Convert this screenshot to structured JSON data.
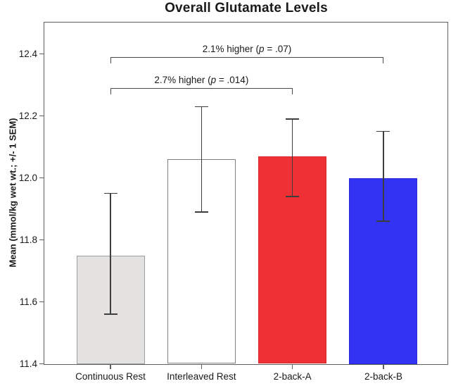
{
  "title": "Overall Glutamate Levels",
  "y_axis": {
    "label": "Mean (mmol/kg wet wt.; +/- 1 SEM)"
  },
  "chart_data": {
    "type": "bar",
    "title": "Overall Glutamate Levels",
    "xlabel": "",
    "ylabel": "Mean (mmol/kg wet wt.; +/- 1 SEM)",
    "categories": [
      "Continuous Rest",
      "Interleaved Rest",
      "2-back-A",
      "2-back-B"
    ],
    "values": [
      11.75,
      12.06,
      12.07,
      12.0
    ],
    "error_low": [
      11.56,
      11.89,
      11.94,
      11.86
    ],
    "error_high": [
      11.95,
      12.23,
      12.19,
      12.15
    ],
    "error_type": "+/- 1 SEM",
    "bar_colors": [
      "#e3e2e0",
      "#ffffff",
      "#ee3134",
      "#3333f3"
    ],
    "bar_border_colors": [
      "#9e9e9e",
      "#808080",
      "#d62b2e",
      "#2a2ad8"
    ],
    "ylim": [
      11.4,
      12.5
    ],
    "yticks": [
      {
        "value": 11.4,
        "label": "11.4"
      },
      {
        "value": 11.6,
        "label": "11.6"
      },
      {
        "value": 11.8,
        "label": "11.8"
      },
      {
        "value": 12.0,
        "label": "12.0"
      },
      {
        "value": 12.2,
        "label": "12.2"
      },
      {
        "value": 12.4,
        "label": "12.4"
      }
    ],
    "grid": false,
    "legend": null,
    "annotations": [
      {
        "from_bar": 0,
        "to_bar": 3,
        "level": 12.39,
        "text_pre": "2.1% higher (",
        "text_italic": "p",
        "text_post": " = .07)"
      },
      {
        "from_bar": 0,
        "to_bar": 2,
        "level": 12.29,
        "text_pre": "2.7% higher (",
        "text_italic": "p",
        "text_post": " = .014)"
      }
    ]
  }
}
